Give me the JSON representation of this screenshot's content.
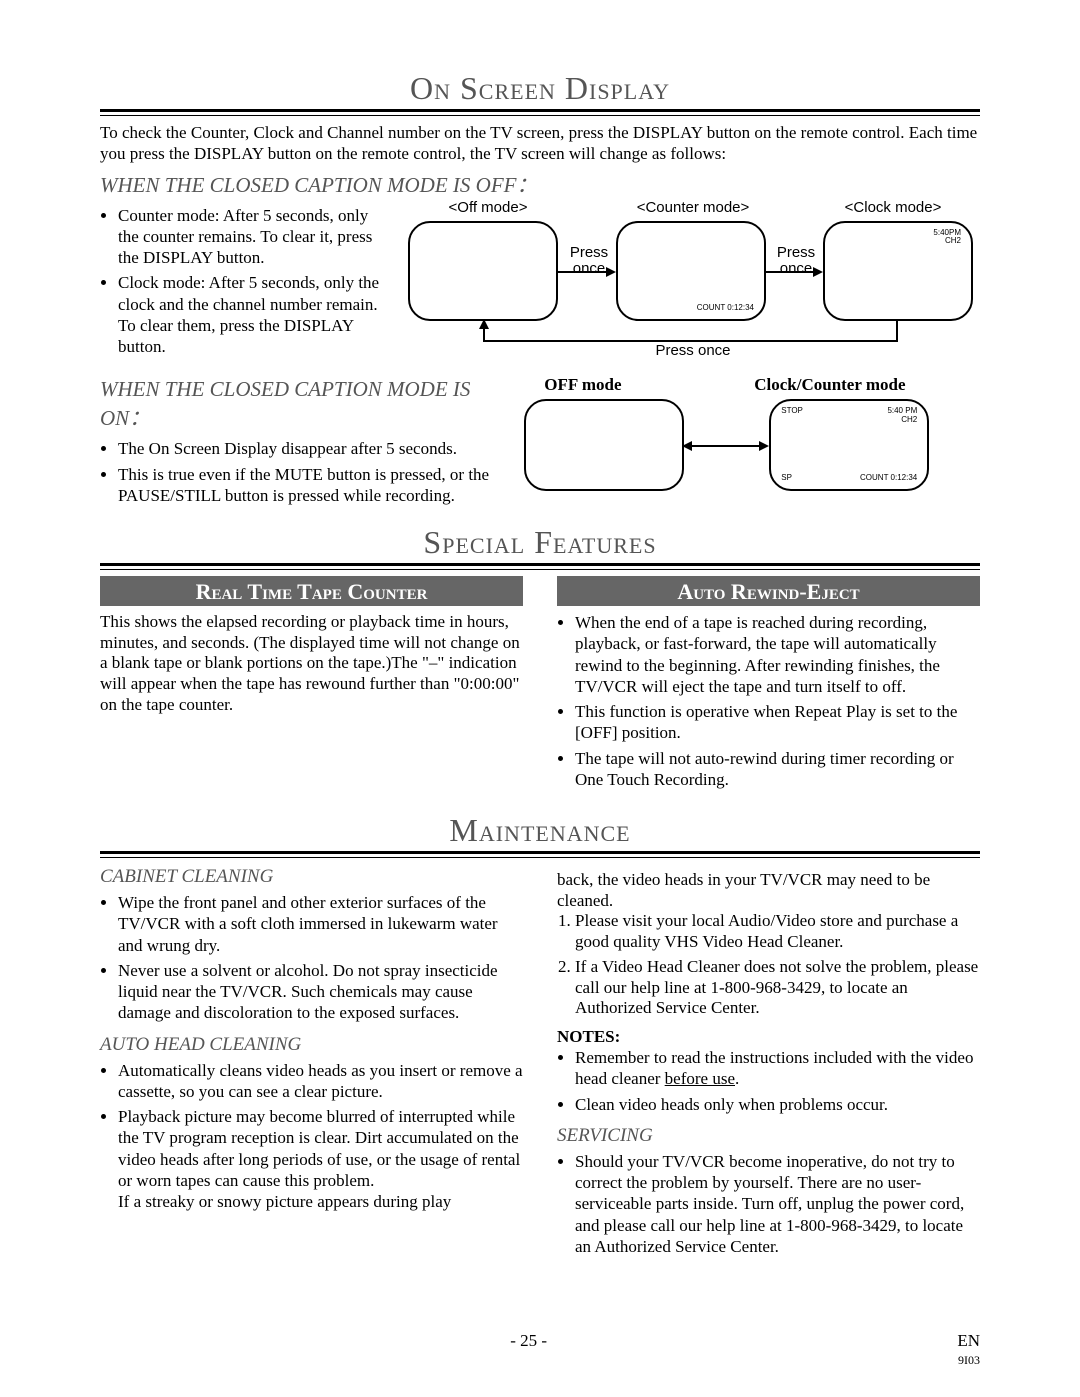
{
  "osd": {
    "title": "On Screen Display",
    "intro": "To check the Counter, Clock and Channel number on the TV screen, press the DISPLAY button on the remote control. Each time you press the DISPLAY button on the remote control, the TV screen will change as follows:",
    "cc_off_title": "WHEN THE CLOSED CAPTION MODE IS OFF：",
    "cc_off_items": [
      "Counter mode: After 5 seconds, only the counter remains. To clear it, press the DISPLAY button.",
      "Clock mode: After 5 seconds, only the clock and the channel number remain. To clear them, press the DISPLAY button."
    ],
    "cc_on_title": "WHEN THE CLOSED CAPTION MODE IS ON：",
    "cc_on_items": [
      "The On Screen Display disappear after 5 seconds.",
      "This is true even if the MUTE button is pressed, or the PAUSE/STILL button is pressed while recording."
    ],
    "diagram_off": {
      "off_mode": "<Off mode>",
      "counter_mode": "<Counter mode>",
      "clock_mode": "<Clock mode>",
      "press_once": "Press\nonce",
      "press_once_bottom": "Press once",
      "count_text": "COUNT  0:12:34",
      "clock_time": "5:40PM",
      "ch": "CH2"
    },
    "diagram_on": {
      "off_label": "OFF mode",
      "cc_label": "Clock/Counter mode",
      "stop": "STOP",
      "time": "5:40 PM",
      "ch": "CH2",
      "sp": "SP",
      "count": "COUNT  0:12:34"
    }
  },
  "special": {
    "title": "Special Features",
    "tape_counter": {
      "header": "Real Time Tape Counter",
      "body": "This shows the elapsed recording or playback time in hours, minutes, and seconds. (The displayed time will not change on a blank tape or blank portions on the tape.)The \"–\" indication will appear when the tape has rewound further than \"0:00:00\" on the tape counter."
    },
    "auto_rewind": {
      "header": "Auto Rewind-Eject",
      "items": [
        "When the end of a tape is reached during recording, playback, or fast-forward, the tape will automatically rewind to the beginning. After rewinding finishes, the TV/VCR will eject the tape and turn itself to off.",
        "This function is operative when Repeat Play is set to the [OFF] position.",
        "The tape will not auto-rewind during timer recording or One Touch Recording."
      ]
    }
  },
  "maint": {
    "title": "Maintenance",
    "cabinet": {
      "header": "CABINET CLEANING",
      "items": [
        "Wipe the front panel and other exterior surfaces of the TV/VCR with a soft cloth immersed in lukewarm water and wrung dry.",
        "Never use a solvent or alcohol. Do not spray insecticide liquid near the TV/VCR. Such chemicals may cause damage and discoloration to the exposed surfaces."
      ]
    },
    "autohead": {
      "header": "AUTO HEAD CLEANING",
      "items": [
        "Automatically cleans video heads as you insert or remove a cassette, so you can see a clear picture.",
        "Playback picture may become blurred of interrupted while the TV program reception is clear. Dirt accumulated on the video heads after long periods of use, or the usage of rental or worn tapes can cause this problem."
      ],
      "tail": "If a streaky or snowy picture appears during play",
      "continue": "back, the video heads in your TV/VCR may need to be cleaned.",
      "steps": [
        "Please visit your local Audio/Video store and purchase a good quality VHS Video Head Cleaner.",
        "If a Video Head Cleaner does not solve the problem, please call our help line at 1-800-968-3429, to locate an Authorized Service Center."
      ],
      "notes_label": "NOTES:",
      "notes": [
        "Remember to read the instructions included with the video head cleaner ",
        "Clean video heads only when problems occur."
      ],
      "before_use": "before use"
    },
    "servicing": {
      "header": "SERVICING",
      "items": [
        "Should your TV/VCR become inoperative, do not try to correct the problem by yourself. There are no user-serviceable parts inside. Turn off, unplug the power cord, and please call our help line at 1-800-968-3429, to locate an Authorized Service Center."
      ]
    }
  },
  "footer": {
    "page": "- 25 -",
    "lang": "EN",
    "code": "9I03"
  }
}
